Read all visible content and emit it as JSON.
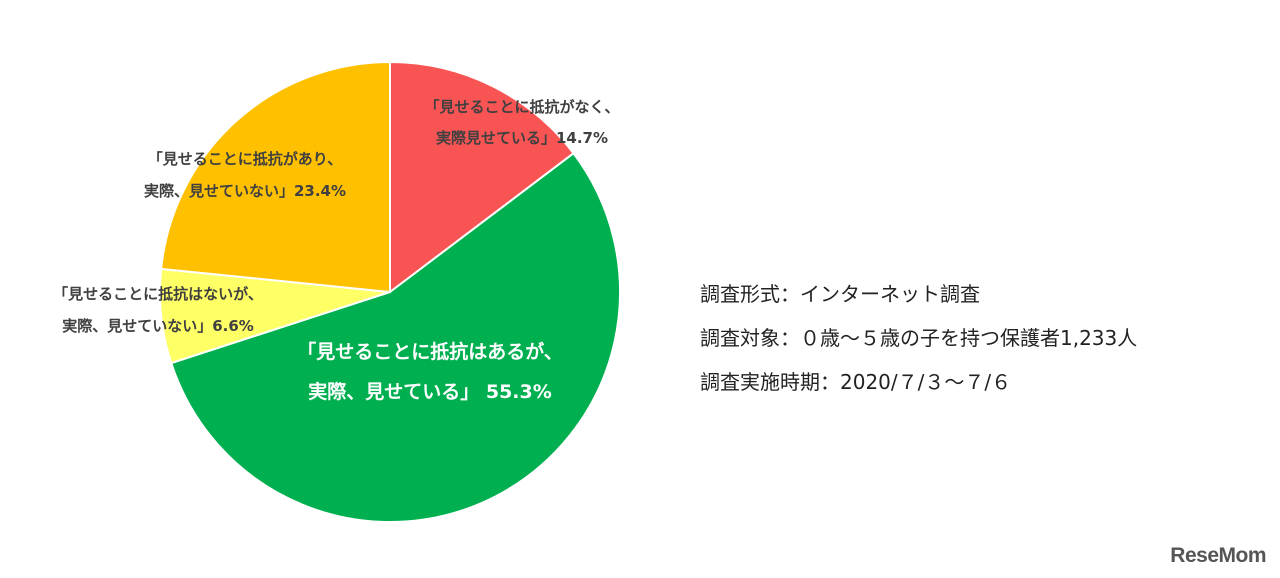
{
  "chart_data": {
    "type": "pie",
    "start_angle_deg": 0,
    "direction": "clockwise",
    "slices": [
      {
        "label_lines": [
          "「見せることに抵抗がなく、",
          "実際見せている」14.7%"
        ],
        "value": 14.7,
        "color": "#F85454"
      },
      {
        "label_lines": [
          "「見せることに抵抗はあるが、",
          "実際、見せている」 55.3%"
        ],
        "value": 55.3,
        "color": "#00B050"
      },
      {
        "label_lines": [
          "「見せることに抵抗はないが、",
          "実際、見せていない」6.6%"
        ],
        "value": 6.6,
        "color": "#FFFF66"
      },
      {
        "label_lines": [
          "「見せることに抵抗があり、",
          "実際、見せていない」23.4%"
        ],
        "value": 23.4,
        "color": "#FFC000"
      }
    ]
  },
  "survey_info": {
    "format": "調査形式：インターネット調査",
    "target": "調査対象：０歳～５歳の子を持つ保護者1,233人",
    "period": "調査実施時期：2020/７/３～７/６"
  },
  "logo": "ReseMom"
}
